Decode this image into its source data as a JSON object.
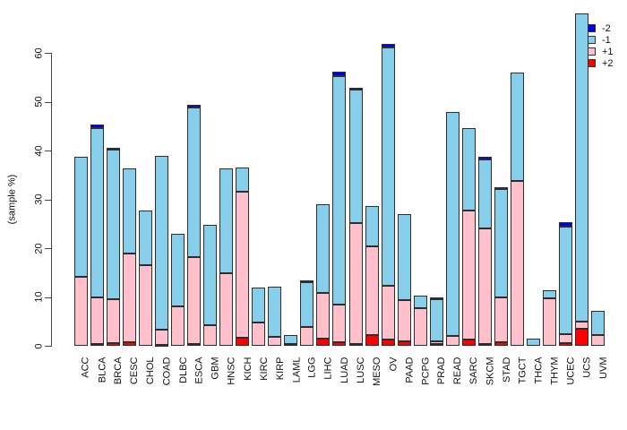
{
  "chart_data": {
    "type": "bar",
    "stacked": true,
    "title": "",
    "xlabel": "",
    "ylabel": "(sample %)",
    "ylim": [
      0,
      70
    ],
    "yticks": [
      0,
      10,
      20,
      30,
      40,
      50,
      60
    ],
    "grid": false,
    "categories": [
      "ACC",
      "BLCA",
      "BRCA",
      "CESC",
      "CHOL",
      "COAD",
      "DLBC",
      "ESCA",
      "GBM",
      "HNSC",
      "KICH",
      "KIRC",
      "KIRP",
      "LAML",
      "LGG",
      "LIHC",
      "LUAD",
      "LUSC",
      "MESO",
      "OV",
      "PAAD",
      "PCPG",
      "PRAD",
      "READ",
      "SARC",
      "SKCM",
      "STAD",
      "TGCT",
      "THCA",
      "THYM",
      "UCEC",
      "UCS",
      "UVM"
    ],
    "stack_order_bottom_to_top": [
      "+2",
      "+1",
      "-1",
      "-2"
    ],
    "series": [
      {
        "name": "+2",
        "color": "#FF0000",
        "values": [
          0,
          0.4,
          0.5,
          0.7,
          0,
          0.2,
          0,
          0.3,
          0,
          0,
          1.6,
          0,
          0,
          0,
          0,
          1.4,
          0.7,
          0.3,
          2.2,
          1.2,
          1.0,
          0,
          0.3,
          0,
          1.3,
          0.3,
          0.8,
          0,
          0,
          0,
          0.6,
          3.5,
          0
        ]
      },
      {
        "name": "+1",
        "color": "#FFC0CB",
        "values": [
          14.2,
          9.6,
          9.0,
          18.3,
          16.6,
          3.1,
          8.1,
          17.9,
          4.3,
          14.9,
          30.0,
          4.8,
          1.9,
          0.3,
          3.8,
          9.4,
          7.8,
          24.8,
          18.2,
          11.2,
          8.4,
          7.7,
          0.6,
          2.0,
          26.5,
          23.7,
          9.2,
          33.9,
          0,
          9.7,
          1.8,
          1.4,
          2.2
        ]
      },
      {
        "name": "-1",
        "color": "#87CEEB",
        "values": [
          24.6,
          34.7,
          30.8,
          17.3,
          11.2,
          35.7,
          14.8,
          30.7,
          20.5,
          21.5,
          4.9,
          7.2,
          10.2,
          1.9,
          9.3,
          18.3,
          46.9,
          27.4,
          8.3,
          48.7,
          17.6,
          2.6,
          8.6,
          45.9,
          16.9,
          14.2,
          22.2,
          22.2,
          1.5,
          1.7,
          22.0,
          63.3,
          5.0
        ]
      },
      {
        "name": "-2",
        "color": "#0000EE",
        "values": [
          0,
          0.6,
          0.3,
          0,
          0,
          0,
          0,
          0.5,
          0,
          0,
          0,
          0,
          0,
          0,
          0.3,
          0,
          0.9,
          0.4,
          0,
          0.9,
          0,
          0,
          0.4,
          0,
          0,
          0.5,
          0.3,
          0,
          0,
          0,
          0.9,
          0,
          0
        ]
      }
    ],
    "legend": {
      "position": "top-right",
      "entries": [
        {
          "label": "-2",
          "color": "#0000EE"
        },
        {
          "label": "-1",
          "color": "#87CEEB"
        },
        {
          "label": "+1",
          "color": "#FFC0CB"
        },
        {
          "label": "+2",
          "color": "#FF0000"
        }
      ]
    }
  }
}
